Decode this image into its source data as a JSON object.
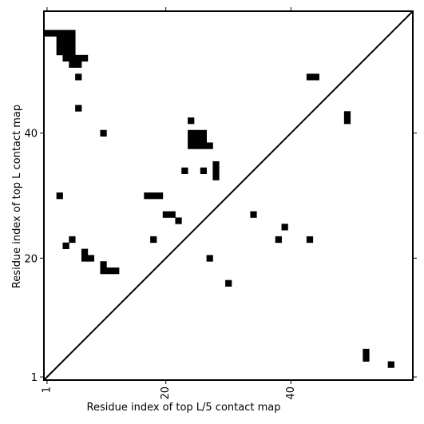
{
  "chart_data": {
    "type": "heatmap",
    "title": "",
    "xlabel": "Residue index of top L/5 contact map",
    "ylabel": "Residue index of top L contact map",
    "xlim": [
      0.5,
      59.5
    ],
    "ylim": [
      0.5,
      59.5
    ],
    "xticks": [
      {
        "value": 1,
        "label": "1"
      },
      {
        "value": 20,
        "label": "20"
      },
      {
        "value": 40,
        "label": "40"
      }
    ],
    "yticks": [
      {
        "value": 1,
        "label": "1"
      },
      {
        "value": 20,
        "label": "20"
      },
      {
        "value": 40,
        "label": "40"
      }
    ],
    "x_tick_label_rotation": -90,
    "grid": false,
    "diagonal_line": true,
    "cell_color": "#000000",
    "background_color": "#ffffff",
    "contacts": [
      [
        1,
        56
      ],
      [
        2,
        56
      ],
      [
        3,
        56
      ],
      [
        4,
        56
      ],
      [
        5,
        56
      ],
      [
        3,
        55
      ],
      [
        4,
        55
      ],
      [
        5,
        55
      ],
      [
        3,
        54
      ],
      [
        4,
        54
      ],
      [
        5,
        54
      ],
      [
        3,
        53
      ],
      [
        4,
        53
      ],
      [
        5,
        53
      ],
      [
        4,
        52
      ],
      [
        5,
        52
      ],
      [
        6,
        52
      ],
      [
        7,
        52
      ],
      [
        5,
        51
      ],
      [
        6,
        51
      ],
      [
        6,
        49
      ],
      [
        6,
        44
      ],
      [
        10,
        40
      ],
      [
        3,
        30
      ],
      [
        4,
        22
      ],
      [
        5,
        23
      ],
      [
        7,
        21
      ],
      [
        7,
        20
      ],
      [
        8,
        20
      ],
      [
        10,
        19
      ],
      [
        10,
        18
      ],
      [
        11,
        18
      ],
      [
        12,
        18
      ],
      [
        17,
        30
      ],
      [
        18,
        30
      ],
      [
        19,
        30
      ],
      [
        18,
        23
      ],
      [
        20,
        27
      ],
      [
        21,
        27
      ],
      [
        22,
        26
      ],
      [
        23,
        34
      ],
      [
        24,
        42
      ],
      [
        24,
        40
      ],
      [
        25,
        40
      ],
      [
        26,
        40
      ],
      [
        24,
        39
      ],
      [
        25,
        39
      ],
      [
        26,
        39
      ],
      [
        24,
        38
      ],
      [
        25,
        38
      ],
      [
        26,
        38
      ],
      [
        27,
        38
      ],
      [
        26,
        34
      ],
      [
        27,
        20
      ],
      [
        28,
        35
      ],
      [
        28,
        34
      ],
      [
        28,
        33
      ],
      [
        30,
        16
      ],
      [
        34,
        27
      ],
      [
        38,
        23
      ],
      [
        39,
        25
      ],
      [
        43,
        23
      ],
      [
        43,
        49
      ],
      [
        44,
        49
      ],
      [
        49,
        43
      ],
      [
        49,
        42
      ],
      [
        52,
        5
      ],
      [
        52,
        4
      ],
      [
        56,
        3
      ]
    ]
  }
}
